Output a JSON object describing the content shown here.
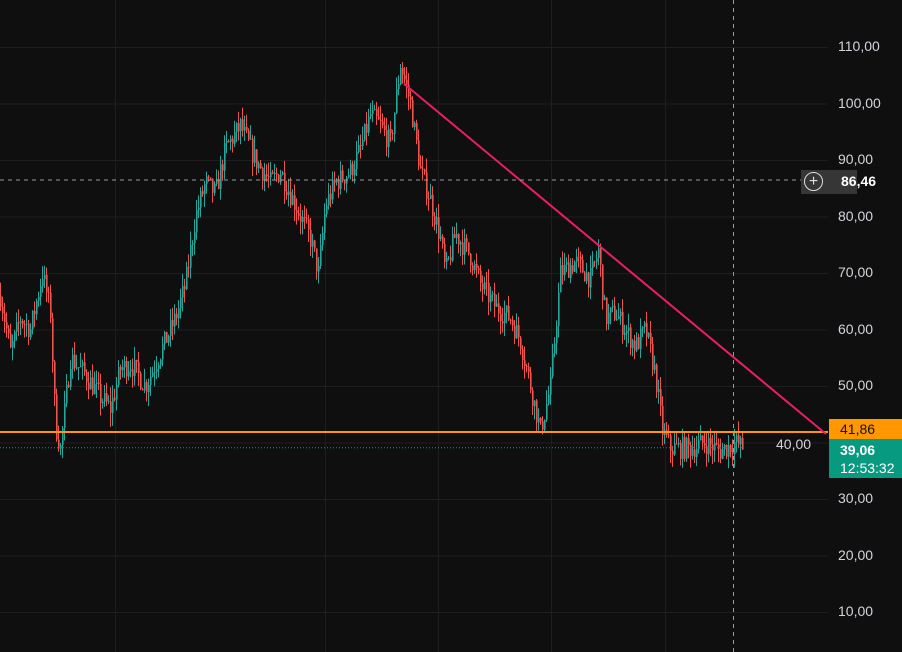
{
  "chart_data": {
    "type": "candlestick",
    "y_ticks": [
      "110,00",
      "100,00",
      "90,00",
      "80,00",
      "70,00",
      "60,00",
      "50,00",
      "40,00",
      "30,00",
      "20,00",
      "10,00"
    ],
    "ylim": [
      5,
      115
    ],
    "grid": true,
    "price_path": [
      [
        0,
        66
      ],
      [
        10,
        56
      ],
      [
        20,
        62
      ],
      [
        30,
        60
      ],
      [
        42,
        70
      ],
      [
        50,
        63
      ],
      [
        55,
        43
      ],
      [
        60,
        39
      ],
      [
        70,
        55
      ],
      [
        85,
        52
      ],
      [
        100,
        48
      ],
      [
        110,
        46
      ],
      [
        120,
        53
      ],
      [
        130,
        54
      ],
      [
        145,
        50
      ],
      [
        160,
        56
      ],
      [
        175,
        62
      ],
      [
        185,
        68
      ],
      [
        195,
        80
      ],
      [
        205,
        86
      ],
      [
        215,
        84
      ],
      [
        225,
        92
      ],
      [
        240,
        96
      ],
      [
        255,
        90
      ],
      [
        270,
        86
      ],
      [
        280,
        88
      ],
      [
        290,
        84
      ],
      [
        300,
        80
      ],
      [
        310,
        76
      ],
      [
        318,
        70
      ],
      [
        325,
        82
      ],
      [
        335,
        86
      ],
      [
        350,
        88
      ],
      [
        360,
        92
      ],
      [
        370,
        98
      ],
      [
        380,
        96
      ],
      [
        390,
        93
      ],
      [
        400,
        107
      ],
      [
        410,
        100
      ],
      [
        420,
        88
      ],
      [
        430,
        83
      ],
      [
        440,
        76
      ],
      [
        445,
        70
      ],
      [
        455,
        77
      ],
      [
        470,
        73
      ],
      [
        480,
        68
      ],
      [
        495,
        64
      ],
      [
        510,
        62
      ],
      [
        520,
        58
      ],
      [
        530,
        50
      ],
      [
        540,
        42
      ],
      [
        550,
        50
      ],
      [
        560,
        70
      ],
      [
        575,
        72
      ],
      [
        590,
        69
      ],
      [
        598,
        74
      ],
      [
        605,
        62
      ],
      [
        615,
        63
      ],
      [
        625,
        60
      ],
      [
        635,
        57
      ],
      [
        645,
        60
      ],
      [
        655,
        52
      ],
      [
        662,
        42
      ],
      [
        670,
        39
      ],
      [
        690,
        39
      ],
      [
        705,
        40
      ],
      [
        720,
        38.5
      ],
      [
        735,
        40
      ],
      [
        743,
        39
      ]
    ],
    "trendline": {
      "from_price": 103.5,
      "to_price": 41.5,
      "color": "#e91e63"
    },
    "horizontal_level": {
      "price": 41.86,
      "label": "41,86",
      "color": "#ff9800"
    },
    "last_price": {
      "price": 39.06,
      "label": "39,06",
      "countdown": "12:53:32",
      "color": "#089981"
    },
    "crosshair": {
      "price": 86.46,
      "label": "86,46"
    },
    "colors": {
      "up": "#26a69a",
      "down": "#ef5350",
      "background": "#0f0f0f",
      "grid": "#1e1e1e"
    }
  }
}
